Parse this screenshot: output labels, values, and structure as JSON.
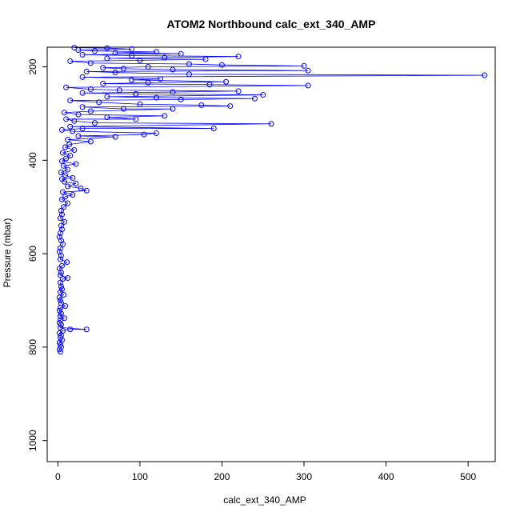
{
  "chart_data": {
    "type": "scatter",
    "title": "ATOM2 Northbound calc_ext_340_AMP",
    "xlabel": "calc_ext_340_AMP",
    "ylabel": "Pressure (mbar)",
    "xlim": [
      -13,
      533
    ],
    "ylim": [
      1045,
      158
    ],
    "y_inverted": true,
    "grid": false,
    "x_ticks": [
      0,
      100,
      200,
      300,
      400,
      500
    ],
    "y_ticks": [
      200,
      400,
      600,
      800,
      1000
    ],
    "series_color": "#0000ff",
    "marker": "open-circle",
    "connected": true,
    "series": [
      {
        "points": [
          [
            3,
            810
          ],
          [
            2,
            805
          ],
          [
            4,
            800
          ],
          [
            3,
            795
          ],
          [
            2,
            790
          ],
          [
            5,
            785
          ],
          [
            3,
            780
          ],
          [
            4,
            775
          ],
          [
            2,
            770
          ],
          [
            6,
            765
          ],
          [
            15,
            762
          ],
          [
            35,
            762
          ],
          [
            3,
            758
          ],
          [
            4,
            752
          ],
          [
            2,
            748
          ],
          [
            3,
            742
          ],
          [
            8,
            738
          ],
          [
            3,
            734
          ],
          [
            4,
            728
          ],
          [
            2,
            722
          ],
          [
            3,
            716
          ],
          [
            9,
            712
          ],
          [
            4,
            706
          ],
          [
            3,
            700
          ],
          [
            2,
            694
          ],
          [
            7,
            688
          ],
          [
            3,
            682
          ],
          [
            5,
            676
          ],
          [
            4,
            670
          ],
          [
            3,
            662
          ],
          [
            6,
            654
          ],
          [
            12,
            652
          ],
          [
            3,
            646
          ],
          [
            4,
            640
          ],
          [
            2,
            632
          ],
          [
            5,
            626
          ],
          [
            11,
            618
          ],
          [
            3,
            612
          ],
          [
            4,
            604
          ],
          [
            2,
            596
          ],
          [
            3,
            588
          ],
          [
            6,
            580
          ],
          [
            4,
            572
          ],
          [
            2,
            564
          ],
          [
            3,
            556
          ],
          [
            5,
            548
          ],
          [
            4,
            540
          ],
          [
            8,
            532
          ],
          [
            3,
            524
          ],
          [
            5,
            516
          ],
          [
            4,
            508
          ],
          [
            7,
            500
          ],
          [
            12,
            492
          ],
          [
            5,
            484
          ],
          [
            9,
            478
          ],
          [
            18,
            474
          ],
          [
            6,
            468
          ],
          [
            35,
            465
          ],
          [
            28,
            460
          ],
          [
            12,
            456
          ],
          [
            22,
            450
          ],
          [
            8,
            446
          ],
          [
            5,
            440
          ],
          [
            18,
            438
          ],
          [
            9,
            432
          ],
          [
            4,
            426
          ],
          [
            12,
            420
          ],
          [
            7,
            412
          ],
          [
            22,
            408
          ],
          [
            5,
            402
          ],
          [
            10,
            396
          ],
          [
            15,
            390
          ],
          [
            6,
            384
          ],
          [
            20,
            378
          ],
          [
            9,
            372
          ],
          [
            14,
            366
          ],
          [
            40,
            360
          ],
          [
            12,
            356
          ],
          [
            70,
            350
          ],
          [
            25,
            348
          ],
          [
            105,
            345
          ],
          [
            120,
            342
          ],
          [
            18,
            338
          ],
          [
            5,
            335
          ],
          [
            30,
            332
          ],
          [
            190,
            332
          ],
          [
            15,
            328
          ],
          [
            260,
            322
          ],
          [
            45,
            320
          ],
          [
            20,
            316
          ],
          [
            10,
            312
          ],
          [
            95,
            312
          ],
          [
            60,
            308
          ],
          [
            130,
            305
          ],
          [
            25,
            302
          ],
          [
            8,
            298
          ],
          [
            40,
            295
          ],
          [
            140,
            290
          ],
          [
            80,
            290
          ],
          [
            30,
            286
          ],
          [
            210,
            284
          ],
          [
            175,
            282
          ],
          [
            100,
            280
          ],
          [
            50,
            276
          ],
          [
            15,
            272
          ],
          [
            150,
            270
          ],
          [
            240,
            268
          ],
          [
            120,
            266
          ],
          [
            60,
            264
          ],
          [
            250,
            260
          ],
          [
            95,
            258
          ],
          [
            30,
            256
          ],
          [
            140,
            254
          ],
          [
            220,
            252
          ],
          [
            75,
            250
          ],
          [
            40,
            248
          ],
          [
            10,
            244
          ],
          [
            305,
            240
          ],
          [
            185,
            238
          ],
          [
            55,
            236
          ],
          [
            110,
            234
          ],
          [
            205,
            232
          ],
          [
            90,
            228
          ],
          [
            125,
            226
          ],
          [
            30,
            222
          ],
          [
            520,
            218
          ],
          [
            160,
            216
          ],
          [
            70,
            212
          ],
          [
            35,
            210
          ],
          [
            305,
            208
          ],
          [
            140,
            206
          ],
          [
            80,
            204
          ],
          [
            55,
            202
          ],
          [
            110,
            200
          ],
          [
            300,
            198
          ],
          [
            200,
            196
          ],
          [
            160,
            194
          ],
          [
            40,
            192
          ],
          [
            15,
            188
          ],
          [
            100,
            186
          ],
          [
            180,
            184
          ],
          [
            60,
            182
          ],
          [
            130,
            180
          ],
          [
            220,
            178
          ],
          [
            90,
            176
          ],
          [
            30,
            174
          ],
          [
            150,
            172
          ],
          [
            70,
            170
          ],
          [
            120,
            168
          ],
          [
            45,
            166
          ],
          [
            25,
            164
          ],
          [
            90,
            162
          ],
          [
            60,
            160
          ],
          [
            20,
            159
          ]
        ]
      }
    ]
  }
}
